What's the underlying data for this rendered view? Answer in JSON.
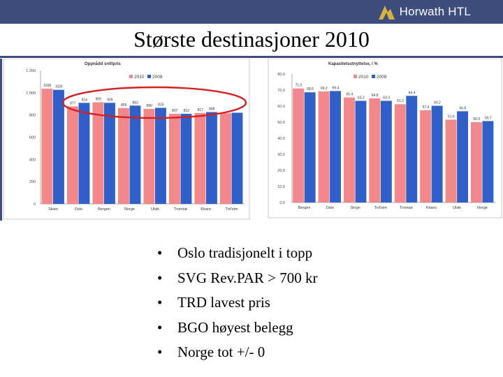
{
  "header": {
    "logo_text": "Horwath HTL",
    "title": "Største destinasjoner 2010",
    "bar_color": "#3d4d7d"
  },
  "bullets": [
    "Oslo tradisjonelt i topp",
    "SVG Rev.PAR > 700 kr",
    "TRD lavest pris",
    "BGO høyest belegg",
    "Norge tot +/- 0"
  ],
  "colors": {
    "series_2010": "#f4878a",
    "series_2009": "#2f5fc8",
    "highlight": "#d42020"
  },
  "chart_data": [
    {
      "type": "bar",
      "title": "Oppnådd snittpris",
      "categories": [
        "Skien",
        "Oslo",
        "Bergen",
        "Norge",
        "Ulsik",
        "Tromsø",
        "Kkanc",
        "Trd'eim"
      ],
      "series": [
        {
          "name": "2010",
          "values": [
            1036,
            877,
            914,
            862,
            855,
            810,
            817,
            816
          ]
        },
        {
          "name": "2009",
          "values": [
            1026,
            909,
            909,
            884,
            864,
            810,
            826,
            820
          ]
        }
      ],
      "data_labels_visible": [
        "1036",
        "1026",
        "877",
        "914",
        "909",
        "909",
        "856",
        "862",
        "890",
        "815",
        "807",
        "812",
        "817",
        "848"
      ],
      "yticks": [
        "0",
        "200",
        "400",
        "600",
        "800",
        "1 000",
        "1 200"
      ],
      "ylim": [
        0,
        1200
      ],
      "legend": "top-center",
      "annotation": "highlight-ellipse"
    },
    {
      "type": "bar",
      "title": "Kapasitetsutnyttelse, i %",
      "categories": [
        "Bergen",
        "Oslo",
        "Skrgn",
        "Trd'eim",
        "Tromsø",
        "Kkanc",
        "Ulsik",
        "Norge"
      ],
      "series": [
        {
          "name": "2010",
          "values": [
            71.0,
            69.2,
            65.4,
            64.8,
            61.2,
            57.4,
            51.6,
            50.0
          ]
        },
        {
          "name": "2009",
          "values": [
            68.6,
            69.4,
            63.3,
            63.3,
            66.4,
            60.2,
            56.8,
            50.7
          ]
        }
      ],
      "data_labels": [
        [
          "71.0",
          "68.6"
        ],
        [
          "69.2",
          "69.4"
        ],
        [
          "65.4",
          "63.3"
        ],
        [
          "64.8",
          "63.3"
        ],
        [
          "61.2",
          "66.4"
        ],
        [
          "57.4",
          "60.2"
        ],
        [
          "51.6",
          "56.8"
        ],
        [
          "50.0",
          "50.7"
        ]
      ],
      "yticks": [
        "0.0",
        "10.0",
        "20.0",
        "30.0",
        "40.0",
        "50.0",
        "60.0",
        "70.0",
        "80.0"
      ],
      "ylim": [
        0,
        80
      ],
      "legend": "top-center"
    }
  ]
}
